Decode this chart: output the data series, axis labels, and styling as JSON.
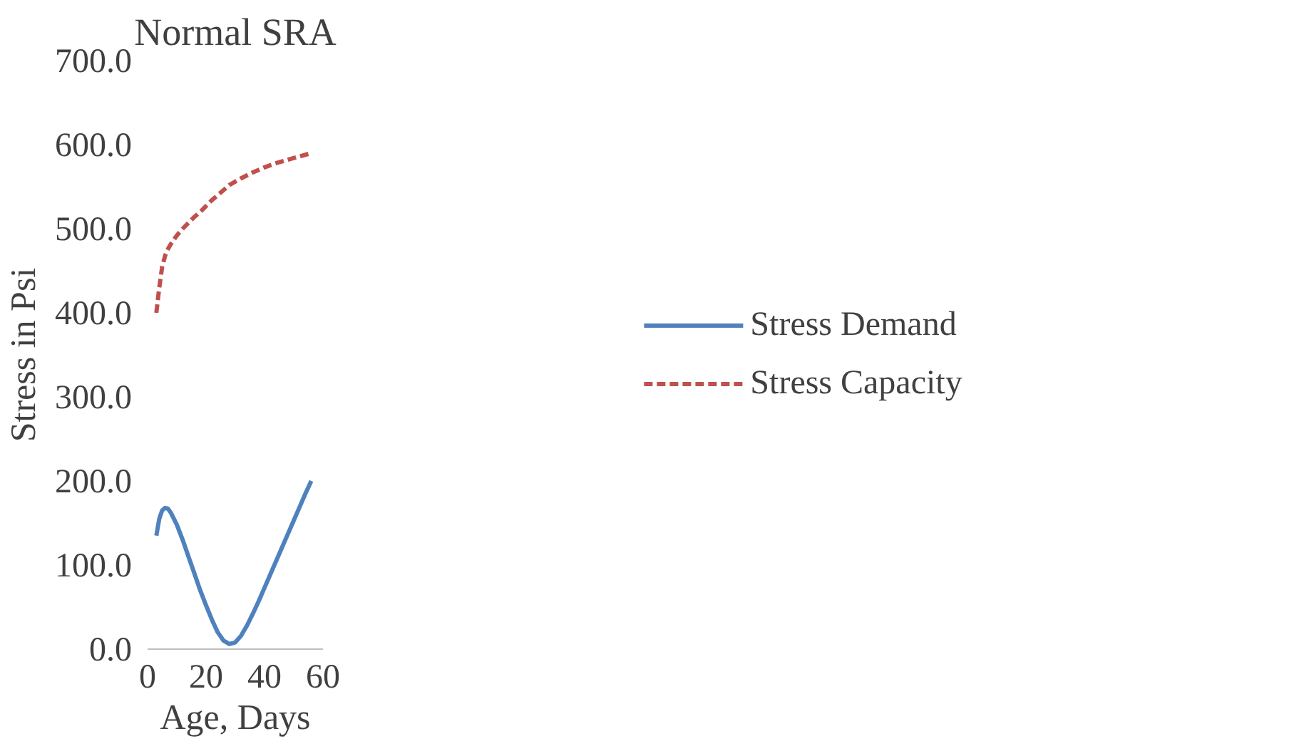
{
  "chart_data": {
    "type": "line",
    "title": "Normal SRA",
    "xlabel": "Age, Days",
    "ylabel": "Stress in Psi",
    "xlim": [
      0,
      60
    ],
    "xticks": [
      0,
      20,
      40,
      60
    ],
    "ylim": [
      0,
      700
    ],
    "yticks": [
      {
        "value": 0,
        "label": "0.0"
      },
      {
        "value": 100,
        "label": "100.0"
      },
      {
        "value": 200,
        "label": "200.0"
      },
      {
        "value": 300,
        "label": "300.0"
      },
      {
        "value": 400,
        "label": "400.0"
      },
      {
        "value": 500,
        "label": "500.0"
      },
      {
        "value": 600,
        "label": "600.0"
      },
      {
        "value": 700,
        "label": "700.0"
      }
    ],
    "grid": false,
    "legend": "right",
    "marker": "none",
    "series": [
      {
        "name": "Stress Demand",
        "color": "#4f81bd",
        "line_style": "solid",
        "x": [
          3,
          4,
          5,
          6,
          7,
          8,
          10,
          12,
          14,
          16,
          18,
          20,
          22,
          24,
          26,
          28,
          30,
          32,
          34,
          36,
          38,
          40,
          42,
          44,
          46,
          48,
          50,
          52,
          54,
          56
        ],
        "values": [
          135,
          155,
          165,
          168,
          167,
          162,
          148,
          130,
          110,
          90,
          70,
          52,
          35,
          20,
          10,
          6,
          8,
          16,
          28,
          42,
          57,
          73,
          89,
          105,
          121,
          137,
          153,
          169,
          185,
          200
        ]
      },
      {
        "name": "Stress Capacity",
        "color": "#c0504d",
        "line_style": "dashed",
        "x": [
          3,
          4,
          5,
          6,
          7,
          8,
          10,
          12,
          14,
          16,
          18,
          20,
          22,
          24,
          26,
          28,
          32,
          36,
          40,
          44,
          48,
          52,
          56
        ],
        "values": [
          400,
          430,
          455,
          468,
          476,
          482,
          492,
          500,
          507,
          514,
          520,
          527,
          534,
          540,
          546,
          552,
          560,
          567,
          573,
          578,
          582,
          586,
          590
        ]
      }
    ]
  }
}
